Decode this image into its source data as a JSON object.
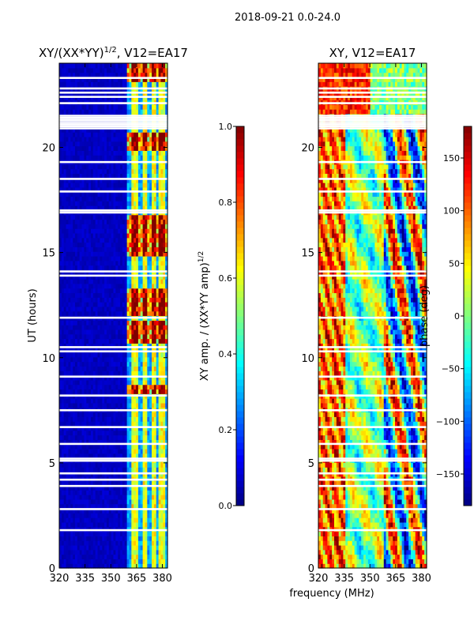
{
  "figure_title": "2018-09-21 0.0-24.0",
  "colors": {
    "jet": [
      "#00007f",
      "#0000ff",
      "#007fff",
      "#00ffff",
      "#7fff7f",
      "#ffff00",
      "#ff7f00",
      "#ff0000",
      "#7f0000"
    ],
    "flag_gap": "#ffffff",
    "frame": "#000000"
  },
  "chart_data": [
    {
      "type": "heatmap",
      "title": "XY/(XX*YY)",
      "title_exponent": "1/2",
      "title_suffix": ", V12=EA17",
      "xlabel": "",
      "ylabel": "UT (hours)",
      "xlim": [
        320,
        383
      ],
      "ylim": [
        0,
        24
      ],
      "xticks": [
        320,
        335,
        350,
        365,
        380
      ],
      "yticks": [
        0,
        5,
        10,
        15,
        20
      ],
      "value_range": [
        0.0,
        1.0
      ],
      "colorbar": {
        "label": "XY amp. / (XX*YY amp)",
        "label_exponent": "1/2",
        "ticks": [
          "0.0",
          "0.2",
          "0.4",
          "0.6",
          "0.8",
          "1.0"
        ],
        "tick_values": [
          0.0,
          0.2,
          0.4,
          0.6,
          0.8,
          1.0
        ],
        "range": [
          0.0,
          1.0
        ]
      },
      "active_band_mhz": [
        360,
        383
      ],
      "bright_channels_mhz": [
        364,
        370,
        375,
        380
      ],
      "high_amplitude_hours": [
        [
          8.2,
          8.8
        ],
        [
          10.7,
          11.7
        ],
        [
          12.0,
          13.4
        ],
        [
          14.8,
          16.8
        ],
        [
          19.8,
          20.8
        ],
        [
          23.2,
          24.0
        ]
      ],
      "flagged_hours": [
        1.8,
        2.8,
        3.9,
        4.2,
        4.5,
        5.1,
        5.2,
        5.9,
        6.7,
        7.5,
        8.2,
        9.1,
        10.3,
        10.5,
        11.9,
        13.9,
        14.1,
        16.9,
        17.0,
        17.9,
        18.5,
        19.3,
        20.9,
        21.0,
        21.1,
        21.2,
        21.3,
        21.4,
        21.5,
        22.1,
        22.4,
        22.6,
        22.8,
        23.3
      ]
    },
    {
      "type": "heatmap",
      "title": "XY, V12=EA17",
      "xlabel": "frequency (MHz)",
      "ylabel": "",
      "xlim": [
        320,
        383
      ],
      "ylim": [
        0,
        24
      ],
      "xticks": [
        320,
        335,
        350,
        365,
        380
      ],
      "yticks": [
        0,
        5,
        10,
        15,
        20
      ],
      "value_range": [
        -180,
        180
      ],
      "colorbar": {
        "label": "phase (deg)",
        "ticks": [
          "−150",
          "−100",
          "−50",
          "0",
          "50",
          "100",
          "150"
        ],
        "tick_values": [
          -150,
          -100,
          -50,
          0,
          50,
          100,
          150
        ],
        "range": [
          -180,
          180
        ]
      },
      "flagged_hours": [
        1.8,
        2.8,
        3.9,
        4.2,
        4.5,
        5.1,
        5.2,
        5.9,
        6.7,
        7.5,
        8.2,
        9.1,
        10.3,
        10.5,
        11.9,
        13.9,
        14.1,
        16.9,
        17.0,
        17.9,
        18.5,
        19.3,
        20.9,
        21.0,
        21.1,
        21.2,
        21.3,
        21.4,
        21.5,
        22.1,
        22.4,
        22.6,
        22.8,
        23.3
      ]
    }
  ]
}
